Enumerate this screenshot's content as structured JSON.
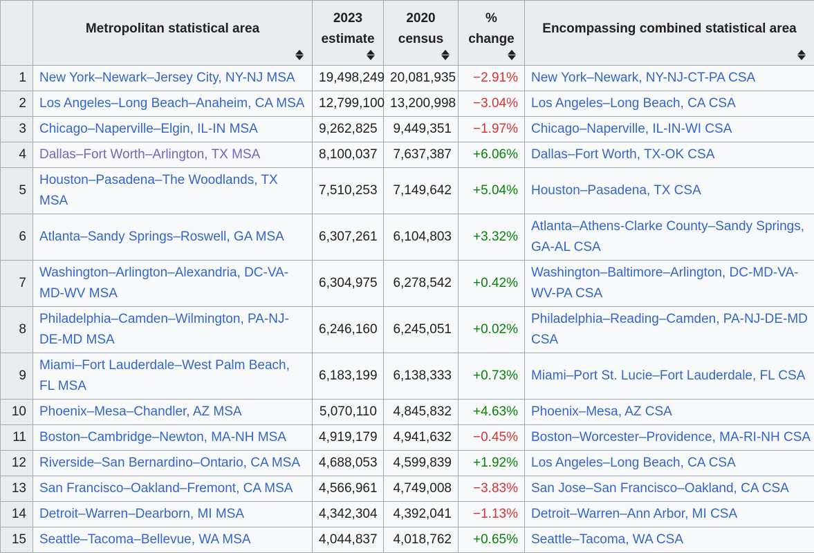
{
  "colors": {
    "text": "#202122",
    "link": "#3366cc",
    "visited": "#7664be",
    "negative": "#d73333",
    "positive": "#078307",
    "border": "#a2a9b1",
    "th-bg": "#eaecf0",
    "td-bg": "#f8f9fa"
  },
  "table": {
    "columns": [
      {
        "key": "rank",
        "label": "",
        "sortable": false
      },
      {
        "key": "msa",
        "label": "Metropolitan statistical area",
        "sortable": true
      },
      {
        "key": "est2023",
        "label": "2023 estimate",
        "sortable": true
      },
      {
        "key": "census2020",
        "label": "2020 census",
        "sortable": true
      },
      {
        "key": "change",
        "label": "% change",
        "sortable": true
      },
      {
        "key": "csa",
        "label": "Encompassing combined statistical area",
        "sortable": true
      }
    ],
    "sort_icon": "sort-arrows-icon",
    "rows": [
      {
        "rank": "1",
        "msa": "New York–Newark–Jersey City, NY-NJ MSA",
        "visited": false,
        "est2023": "19,498,249",
        "census2020": "20,081,935",
        "change": "−2.91%",
        "change_dir": "negative",
        "csa": "New York–Newark, NY-NJ-CT-PA CSA"
      },
      {
        "rank": "2",
        "msa": "Los Angeles–Long Beach–Anaheim, CA MSA",
        "visited": false,
        "est2023": "12,799,100",
        "census2020": "13,200,998",
        "change": "−3.04%",
        "change_dir": "negative",
        "csa": "Los Angeles–Long Beach, CA CSA"
      },
      {
        "rank": "3",
        "msa": "Chicago–Naperville–Elgin, IL-IN MSA",
        "visited": false,
        "est2023": "9,262,825",
        "census2020": "9,449,351",
        "change": "−1.97%",
        "change_dir": "negative",
        "csa": "Chicago–Naperville, IL-IN-WI CSA"
      },
      {
        "rank": "4",
        "msa": "Dallas–Fort Worth–Arlington, TX MSA",
        "visited": true,
        "est2023": "8,100,037",
        "census2020": "7,637,387",
        "change": "+6.06%",
        "change_dir": "positive",
        "csa": "Dallas–Fort Worth, TX-OK CSA"
      },
      {
        "rank": "5",
        "msa": "Houston–Pasadena–The Woodlands, TX MSA",
        "visited": false,
        "est2023": "7,510,253",
        "census2020": "7,149,642",
        "change": "+5.04%",
        "change_dir": "positive",
        "csa": "Houston–Pasadena, TX CSA"
      },
      {
        "rank": "6",
        "msa": "Atlanta–Sandy Springs–Roswell, GA MSA",
        "visited": false,
        "est2023": "6,307,261",
        "census2020": "6,104,803",
        "change": "+3.32%",
        "change_dir": "positive",
        "csa": "Atlanta–Athens-Clarke County–Sandy Springs, GA-AL CSA"
      },
      {
        "rank": "7",
        "msa": "Washington–Arlington–Alexandria, DC-VA-MD-WV MSA",
        "visited": false,
        "est2023": "6,304,975",
        "census2020": "6,278,542",
        "change": "+0.42%",
        "change_dir": "positive",
        "csa": "Washington–Baltimore–Arlington, DC-MD-VA-WV-PA CSA"
      },
      {
        "rank": "8",
        "msa": "Philadelphia–Camden–Wilmington, PA-NJ-DE-MD MSA",
        "visited": false,
        "est2023": "6,246,160",
        "census2020": "6,245,051",
        "change": "+0.02%",
        "change_dir": "positive",
        "csa": "Philadelphia–Reading–Camden, PA-NJ-DE-MD CSA"
      },
      {
        "rank": "9",
        "msa": "Miami–Fort Lauderdale–West Palm Beach, FL MSA",
        "visited": false,
        "est2023": "6,183,199",
        "census2020": "6,138,333",
        "change": "+0.73%",
        "change_dir": "positive",
        "csa": "Miami–Port St. Lucie–Fort Lauderdale, FL CSA"
      },
      {
        "rank": "10",
        "msa": "Phoenix–Mesa–Chandler, AZ MSA",
        "visited": false,
        "est2023": "5,070,110",
        "census2020": "4,845,832",
        "change": "+4.63%",
        "change_dir": "positive",
        "csa": "Phoenix–Mesa, AZ CSA"
      },
      {
        "rank": "11",
        "msa": "Boston–Cambridge–Newton, MA-NH MSA",
        "visited": false,
        "est2023": "4,919,179",
        "census2020": "4,941,632",
        "change": "−0.45%",
        "change_dir": "negative",
        "csa": "Boston–Worcester–Providence, MA-RI-NH CSA"
      },
      {
        "rank": "12",
        "msa": "Riverside–San Bernardino–Ontario, CA MSA",
        "visited": false,
        "est2023": "4,688,053",
        "census2020": "4,599,839",
        "change": "+1.92%",
        "change_dir": "positive",
        "csa": "Los Angeles–Long Beach, CA CSA"
      },
      {
        "rank": "13",
        "msa": "San Francisco–Oakland–Fremont, CA MSA",
        "visited": false,
        "est2023": "4,566,961",
        "census2020": "4,749,008",
        "change": "−3.83%",
        "change_dir": "negative",
        "csa": "San Jose–San Francisco–Oakland, CA CSA"
      },
      {
        "rank": "14",
        "msa": "Detroit–Warren–Dearborn, MI MSA",
        "visited": false,
        "est2023": "4,342,304",
        "census2020": "4,392,041",
        "change": "−1.13%",
        "change_dir": "negative",
        "csa": "Detroit–Warren–Ann Arbor, MI CSA"
      },
      {
        "rank": "15",
        "msa": "Seattle–Tacoma–Bellevue, WA MSA",
        "visited": false,
        "est2023": "4,044,837",
        "census2020": "4,018,762",
        "change": "+0.65%",
        "change_dir": "positive",
        "csa": "Seattle–Tacoma, WA CSA"
      }
    ]
  }
}
